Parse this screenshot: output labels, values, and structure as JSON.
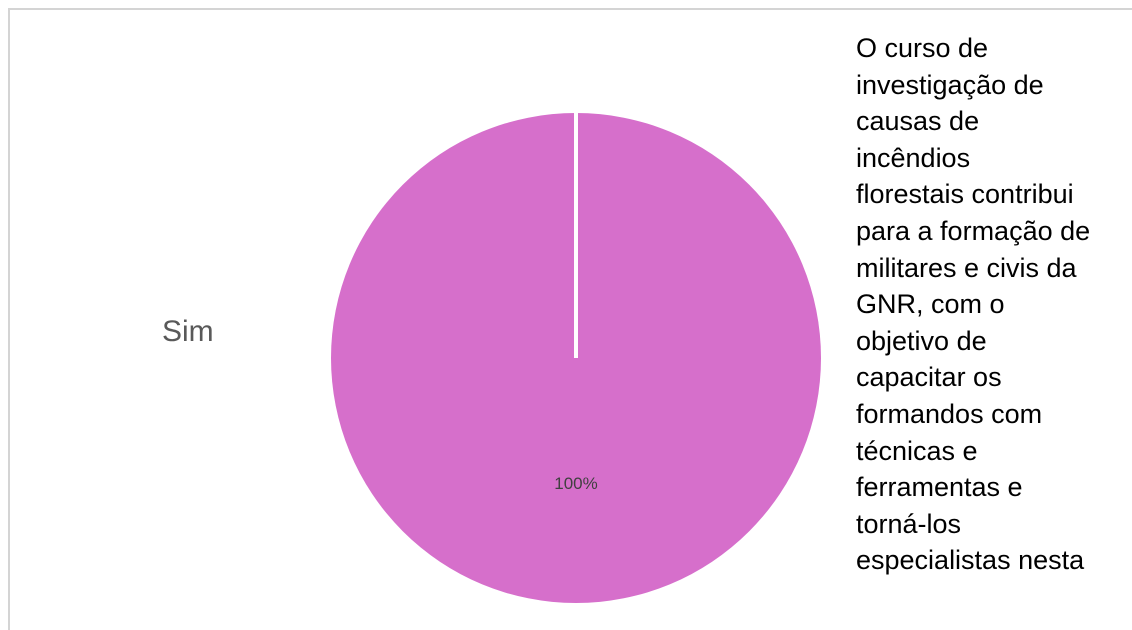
{
  "chart_data": {
    "type": "pie",
    "title": "O curso de\ninvestigação de\ncausas de\nincêndios\nflorestais contribui\npara a formação de\nmilitares e civis da\nGNR, com o\nobjetivo de\ncapacitar os\nformandos com\ntécnicas e\nferramentas e\ntorná-los\nespecialistas nesta",
    "categories": [
      "Sim"
    ],
    "values": [
      100
    ],
    "data_labels": [
      "100%"
    ],
    "colors": [
      "#d66fcb"
    ],
    "separator_color": "#ffffff",
    "legend": "none"
  }
}
